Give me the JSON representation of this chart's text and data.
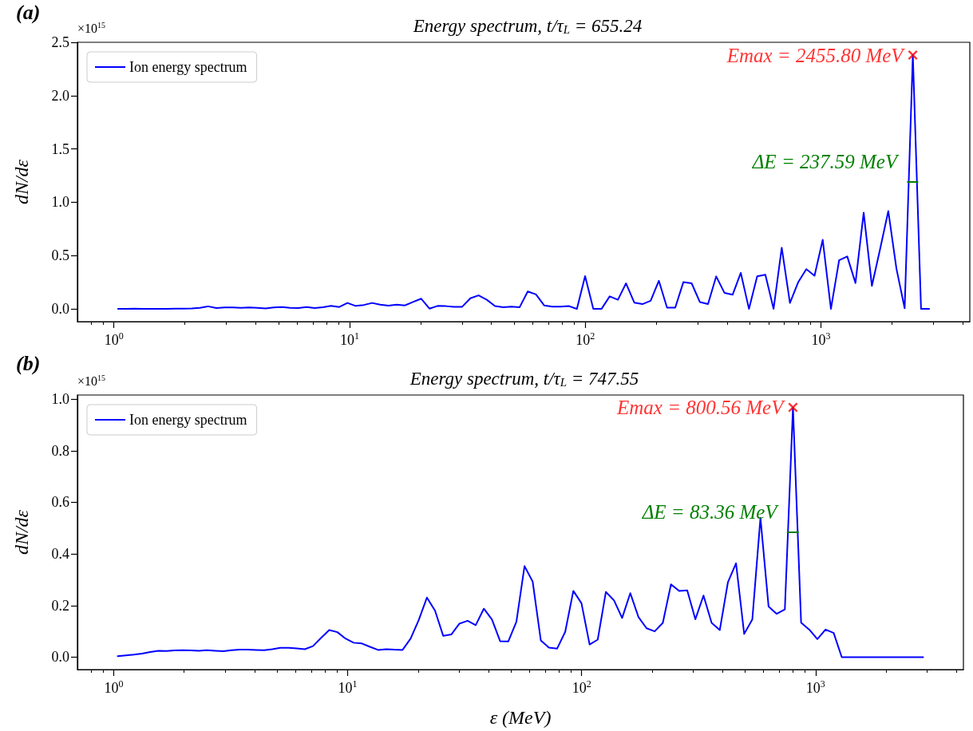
{
  "chart_data": [
    {
      "type": "line",
      "title": "Energy spectrum, t/τ$_{L}$ = 655.24",
      "ylabel": "dN/dε",
      "annotations": [
        "(a)",
        "×10$^{15}$"
      ],
      "x": [
        1.041,
        1.128,
        1.222,
        1.323,
        1.434,
        1.553,
        1.683,
        1.823,
        1.975,
        2.139,
        2.318,
        2.511,
        2.72,
        2.947,
        3.193,
        3.459,
        3.747,
        4.06,
        4.398,
        4.765,
        5.162,
        5.592,
        6.058,
        6.563,
        7.11,
        7.703,
        8.345,
        9.041,
        9.794,
        10.61,
        11.5,
        12.46,
        13.49,
        14.62,
        15.84,
        17.16,
        18.59,
        20.14,
        21.82,
        23.64,
        25.61,
        27.74,
        30.05,
        32.56,
        35.27,
        38.21,
        41.4,
        44.85,
        48.59,
        52.64,
        57.02,
        61.78,
        66.93,
        72.5,
        78.55,
        85.1,
        92.19,
        99.87,
        108.2,
        117.2,
        127.0,
        137.6,
        149.0,
        161.5,
        174.9,
        189.5,
        205.3,
        222.4,
        241.0,
        261.0,
        282.8,
        306.4,
        331.9,
        359.6,
        389.6,
        422.0,
        457.2,
        495.3,
        536.6,
        581.3,
        629.8,
        682.2,
        739.1,
        800.6,
        867.4,
        939.7,
        1018,
        1103,
        1195,
        1294,
        1402,
        1519,
        1646,
        1783,
        1932,
        2093,
        2267,
        2456,
        2661,
        2882
      ],
      "series": [
        {
          "name": "Ion energy spectrum",
          "color": "#0000ff",
          "values": [
            0,
            0,
            0.003,
            0,
            0,
            0,
            0,
            0.003,
            0.003,
            0.005,
            0.01,
            0.024,
            0.008,
            0.013,
            0.013,
            0.01,
            0.013,
            0.01,
            0.005,
            0.013,
            0.018,
            0.01,
            0.008,
            0.018,
            0.008,
            0.015,
            0.028,
            0.018,
            0.056,
            0.028,
            0.037,
            0.056,
            0.04,
            0.031,
            0.04,
            0.033,
            0.065,
            0.096,
            0.003,
            0.028,
            0.026,
            0.02,
            0.02,
            0.1,
            0.127,
            0.086,
            0.027,
            0.015,
            0.021,
            0.015,
            0.163,
            0.136,
            0.033,
            0.021,
            0.021,
            0.027,
            0,
            0.308,
            0,
            0,
            0.118,
            0.086,
            0.24,
            0.059,
            0.045,
            0.077,
            0.264,
            0.012,
            0.012,
            0.252,
            0.24,
            0.065,
            0.045,
            0.305,
            0.151,
            0.133,
            0.338,
            0,
            0.305,
            0.32,
            0,
            0.574,
            0.056,
            0.249,
            0.373,
            0.311,
            0.648,
            0,
            0.456,
            0.492,
            0.243,
            0.903,
            0.216,
            0.56,
            0.918,
            0.376,
            0.006,
            2.38,
            0,
            0
          ]
        },
        {
          "name": "Emax = 2455.80 MeV",
          "type": "scatter",
          "marker": "cross",
          "color": "#ff0000",
          "x": [
            2455.8
          ],
          "values": [
            2.38
          ]
        },
        {
          "name": "ΔE = 237.59 MeV",
          "type": "line",
          "color": "#008000",
          "x": [
            2336.0,
            2573.6
          ],
          "values": [
            1.19,
            1.19
          ]
        }
      ],
      "xlim": [
        0.7,
        4285
      ],
      "ylim": [
        -0.119,
        2.5
      ],
      "xticks": [
        {
          "value": 1,
          "label": "10$^{0}$"
        },
        {
          "value": 10,
          "label": "10$^{1}$"
        },
        {
          "value": 100,
          "label": "10$^{2}$"
        },
        {
          "value": 1000,
          "label": "10$^{3}$"
        },
        {
          "value": 0.8,
          "label": null
        },
        {
          "value": 0.9,
          "label": null
        },
        {
          "value": 2,
          "label": null
        },
        {
          "value": 3,
          "label": null
        },
        {
          "value": 4,
          "label": null
        },
        {
          "value": 5,
          "label": null
        },
        {
          "value": 6,
          "label": null
        },
        {
          "value": 7,
          "label": null
        },
        {
          "value": 8,
          "label": null
        },
        {
          "value": 9,
          "label": null
        },
        {
          "value": 20,
          "label": null
        },
        {
          "value": 30,
          "label": null
        },
        {
          "value": 40,
          "label": null
        },
        {
          "value": 50,
          "label": null
        },
        {
          "value": 60,
          "label": null
        },
        {
          "value": 70,
          "label": null
        },
        {
          "value": 80,
          "label": null
        },
        {
          "value": 90,
          "label": null
        },
        {
          "value": 200,
          "label": null
        },
        {
          "value": 300,
          "label": null
        },
        {
          "value": 400,
          "label": null
        },
        {
          "value": 500,
          "label": null
        },
        {
          "value": 600,
          "label": null
        },
        {
          "value": 700,
          "label": null
        },
        {
          "value": 800,
          "label": null
        },
        {
          "value": 900,
          "label": null
        },
        {
          "value": 2000,
          "label": null
        },
        {
          "value": 3000,
          "label": null
        },
        {
          "value": 4000,
          "label": null
        }
      ],
      "yticks": [
        {
          "value": 0,
          "label": "0.0"
        },
        {
          "value": 0.5,
          "label": "0.5"
        },
        {
          "value": 1,
          "label": "1.0"
        },
        {
          "value": 1.5,
          "label": "1.5"
        },
        {
          "value": 2,
          "label": "2.0"
        },
        {
          "value": 2.5,
          "label": "2.5"
        }
      ],
      "log": "x",
      "legend": "top left",
      "marker": "none",
      "line_style": "solid"
    },
    {
      "type": "line",
      "title": "Energy spectrum, t/τ$_{L}$ = 747.55",
      "xlabel": "ε (MeV)",
      "ylabel": "dN/dε",
      "annotations": [
        "(b)",
        "×10$^{15}$"
      ],
      "x": [
        1.041,
        1.128,
        1.222,
        1.323,
        1.434,
        1.553,
        1.683,
        1.823,
        1.975,
        2.139,
        2.318,
        2.511,
        2.72,
        2.947,
        3.193,
        3.459,
        3.747,
        4.06,
        4.398,
        4.765,
        5.162,
        5.592,
        6.058,
        6.563,
        7.11,
        7.703,
        8.345,
        9.041,
        9.794,
        10.61,
        11.5,
        12.46,
        13.49,
        14.62,
        15.84,
        17.16,
        18.59,
        20.14,
        21.82,
        23.64,
        25.61,
        27.74,
        30.05,
        32.56,
        35.27,
        38.21,
        41.4,
        44.85,
        48.59,
        52.64,
        57.02,
        61.78,
        66.93,
        72.5,
        78.55,
        85.1,
        92.19,
        99.87,
        108.2,
        117.2,
        127.0,
        137.6,
        149.0,
        161.5,
        174.9,
        189.5,
        205.3,
        222.4,
        241.0,
        261.0,
        282.8,
        306.4,
        331.9,
        359.6,
        389.6,
        422.0,
        457.2,
        495.3,
        536.6,
        581.3,
        629.8,
        682.2,
        739.1,
        800.6,
        867.4,
        939.7,
        1018,
        1103,
        1195,
        1294,
        1402,
        1519,
        1646,
        1783,
        1932,
        2093,
        2267,
        2456,
        2661,
        2882
      ],
      "series": [
        {
          "name": "Ion energy spectrum",
          "color": "#0000ff",
          "values": [
            0.004,
            0.007,
            0.01,
            0.014,
            0.02,
            0.025,
            0.024,
            0.026,
            0.027,
            0.026,
            0.025,
            0.027,
            0.025,
            0.023,
            0.027,
            0.029,
            0.029,
            0.028,
            0.027,
            0.031,
            0.036,
            0.036,
            0.034,
            0.031,
            0.043,
            0.075,
            0.105,
            0.097,
            0.072,
            0.056,
            0.053,
            0.04,
            0.028,
            0.031,
            0.029,
            0.028,
            0.072,
            0.144,
            0.231,
            0.18,
            0.083,
            0.088,
            0.13,
            0.141,
            0.124,
            0.188,
            0.146,
            0.062,
            0.061,
            0.137,
            0.353,
            0.293,
            0.065,
            0.037,
            0.033,
            0.098,
            0.257,
            0.209,
            0.049,
            0.068,
            0.253,
            0.22,
            0.152,
            0.248,
            0.156,
            0.112,
            0.1,
            0.133,
            0.282,
            0.257,
            0.259,
            0.147,
            0.239,
            0.133,
            0.105,
            0.29,
            0.364,
            0.09,
            0.146,
            0.54,
            0.196,
            0.168,
            0.185,
            0.968,
            0.134,
            0.107,
            0.07,
            0.107,
            0.094,
            0,
            0,
            0,
            0,
            0,
            0,
            0,
            0,
            0,
            0,
            0
          ]
        },
        {
          "name": "Emax = 800.56 MeV",
          "type": "scatter",
          "marker": "cross",
          "color": "#ff0000",
          "x": [
            800.56
          ],
          "values": [
            0.968
          ]
        },
        {
          "name": "ΔE = 83.36 MeV",
          "type": "line",
          "color": "#008000",
          "x": [
            758.9,
            842.3
          ],
          "values": [
            0.484,
            0.484
          ]
        }
      ],
      "xlim": [
        0.7,
        4285
      ],
      "ylim": [
        -0.048,
        1.016
      ],
      "xticks": [
        {
          "value": 1,
          "label": "10$^{0}$"
        },
        {
          "value": 10,
          "label": "10$^{1}$"
        },
        {
          "value": 100,
          "label": "10$^{2}$"
        },
        {
          "value": 1000,
          "label": "10$^{3}$"
        },
        {
          "value": 0.8,
          "label": null
        },
        {
          "value": 0.9,
          "label": null
        },
        {
          "value": 2,
          "label": null
        },
        {
          "value": 3,
          "label": null
        },
        {
          "value": 4,
          "label": null
        },
        {
          "value": 5,
          "label": null
        },
        {
          "value": 6,
          "label": null
        },
        {
          "value": 7,
          "label": null
        },
        {
          "value": 8,
          "label": null
        },
        {
          "value": 9,
          "label": null
        },
        {
          "value": 20,
          "label": null
        },
        {
          "value": 30,
          "label": null
        },
        {
          "value": 40,
          "label": null
        },
        {
          "value": 50,
          "label": null
        },
        {
          "value": 60,
          "label": null
        },
        {
          "value": 70,
          "label": null
        },
        {
          "value": 80,
          "label": null
        },
        {
          "value": 90,
          "label": null
        },
        {
          "value": 200,
          "label": null
        },
        {
          "value": 300,
          "label": null
        },
        {
          "value": 400,
          "label": null
        },
        {
          "value": 500,
          "label": null
        },
        {
          "value": 600,
          "label": null
        },
        {
          "value": 700,
          "label": null
        },
        {
          "value": 800,
          "label": null
        },
        {
          "value": 900,
          "label": null
        },
        {
          "value": 2000,
          "label": null
        },
        {
          "value": 3000,
          "label": null
        },
        {
          "value": 4000,
          "label": null
        }
      ],
      "yticks": [
        {
          "value": 0,
          "label": "0.0"
        },
        {
          "value": 0.2,
          "label": "0.2"
        },
        {
          "value": 0.4,
          "label": "0.4"
        },
        {
          "value": 0.6,
          "label": "0.6"
        },
        {
          "value": 0.8,
          "label": "0.8"
        },
        {
          "value": 1,
          "label": "1.0"
        }
      ],
      "log": "x",
      "legend": "top left",
      "marker": "none",
      "line_style": "solid"
    }
  ]
}
